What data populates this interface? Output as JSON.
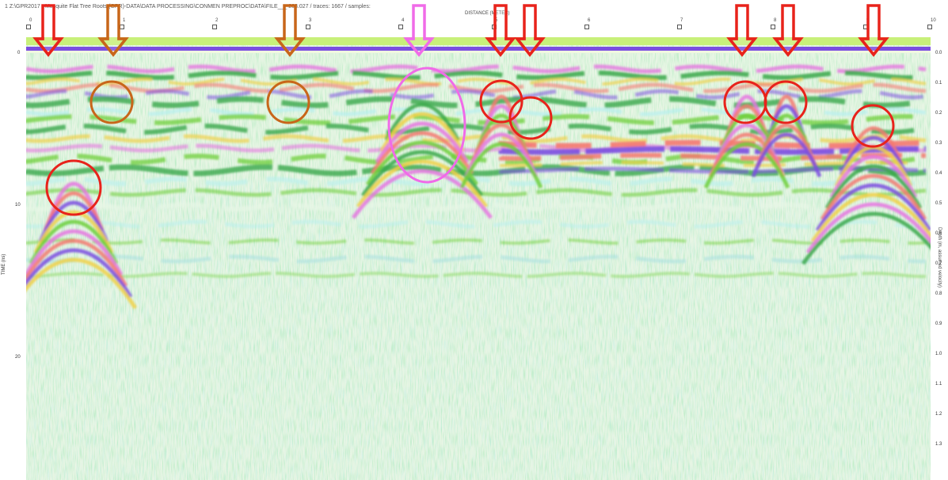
{
  "header": {
    "file_title": "1 Z:\\GPR2017 - Mesquite Flat Tree Roots (GPR)-DATA\\DATA PROCESSING\\CONMEN PREPROC\\DATA\\FILE___ 208.027 / traces: 1667 / samples:",
    "distance_axis_label": "DISTANCE (METER)"
  },
  "top_axis": {
    "ticks": [
      "0",
      "1",
      "2",
      "3",
      "4",
      "5",
      "6",
      "7",
      "8",
      "9",
      "10"
    ]
  },
  "left_axis": {
    "title": "TIME (ns)",
    "labels": [
      "0",
      "10",
      "20"
    ]
  },
  "right_axis": {
    "title": "Depth (m, assumed velocity)",
    "labels": [
      "0.0",
      "0.1",
      "0.2",
      "0.3",
      "0.4",
      "0.5",
      "0.6",
      "0.7",
      "0.8",
      "0.9",
      "1.0",
      "1.1",
      "1.2",
      "1.3"
    ]
  },
  "annotations": {
    "arrow_colors": {
      "red": "#e8231b",
      "brown": "#c8661a",
      "pink": "#f06be8"
    },
    "arrows": [
      {
        "color": "red"
      },
      {
        "color": "brown"
      },
      {
        "color": "brown"
      },
      {
        "color": "pink"
      },
      {
        "color": "red"
      },
      {
        "color": "red"
      },
      {
        "color": "red"
      },
      {
        "color": "red"
      },
      {
        "color": "red"
      }
    ],
    "circles": [
      {
        "color": "red"
      },
      {
        "color": "brown"
      },
      {
        "color": "brown"
      },
      {
        "color": "pink"
      },
      {
        "color": "red"
      },
      {
        "color": "red"
      },
      {
        "color": "red"
      },
      {
        "color": "red"
      },
      {
        "color": "red"
      }
    ]
  },
  "radargram": {
    "palette": [
      "#7b4ee0",
      "#e575e0",
      "#f57870",
      "#f0d048",
      "#6fcf3a",
      "#3aa84a",
      "#b7f0ef",
      "#e8f7e6",
      "#9fdde0"
    ]
  }
}
